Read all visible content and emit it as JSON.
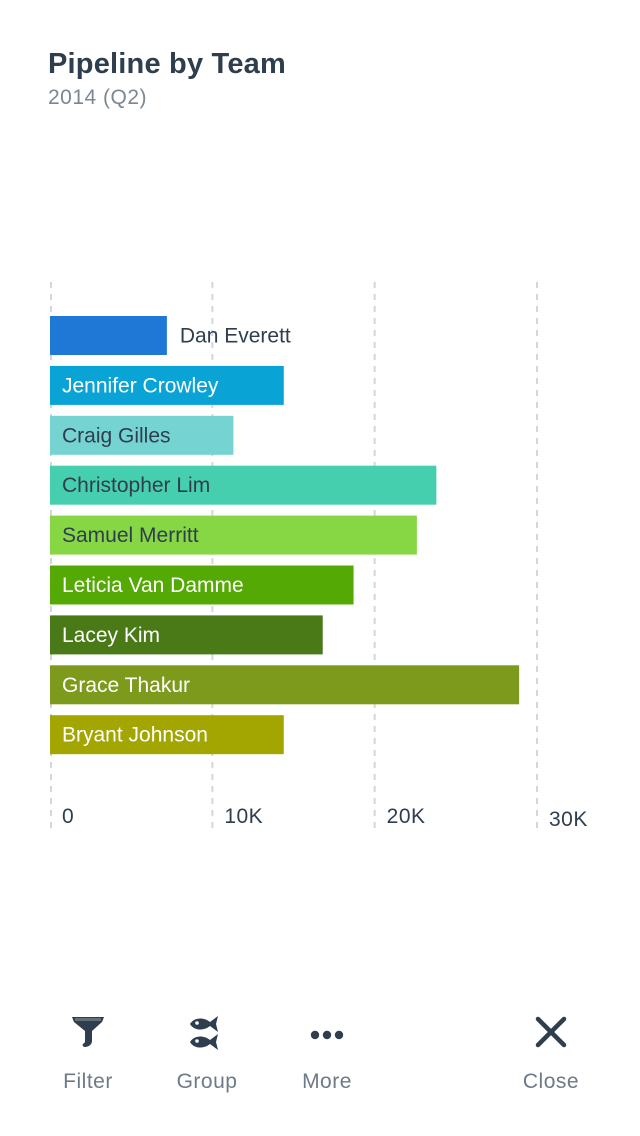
{
  "header": {
    "title": "Pipeline by Team",
    "subtitle": "2014 (Q2)"
  },
  "chart_data": {
    "type": "bar",
    "orientation": "horizontal",
    "title": "Pipeline by Team",
    "subtitle": "2014 (Q2)",
    "xlabel": "",
    "ylabel": "",
    "xlim": [
      0,
      30000
    ],
    "xticks": [
      0,
      10000,
      20000,
      30000
    ],
    "xtick_labels": [
      "0",
      "10K",
      "20K",
      "30K"
    ],
    "grid": "vertical dashed",
    "categories": [
      "Dan Everett",
      "Jennifer Crowley",
      "Craig Gilles",
      "Christopher Lim",
      "Samuel Merritt",
      "Leticia Van Damme",
      "Lacey Kim",
      "Grace Thakur",
      "Bryant Johnson"
    ],
    "values": [
      7200,
      14400,
      11300,
      23800,
      22600,
      18700,
      16800,
      28900,
      14400
    ],
    "colors": [
      "#1f77d6",
      "#0aa3d6",
      "#75d3d1",
      "#46cfae",
      "#86d743",
      "#54a904",
      "#4a7a17",
      "#7e9a1d",
      "#a3a500"
    ],
    "label_colors": [
      "#2f3e4e",
      "#ffffff",
      "#2f3e4e",
      "#2f3e4e",
      "#2f3e4e",
      "#ffffff",
      "#ffffff",
      "#ffffff",
      "#ffffff"
    ]
  },
  "toolbar": {
    "filter_label": "Filter",
    "group_label": "Group",
    "more_label": "More",
    "close_label": "Close",
    "icon_color": "#2f3e4e",
    "icons": [
      "funnel-icon",
      "fish-icon",
      "ellipsis-icon",
      "close-icon"
    ]
  }
}
